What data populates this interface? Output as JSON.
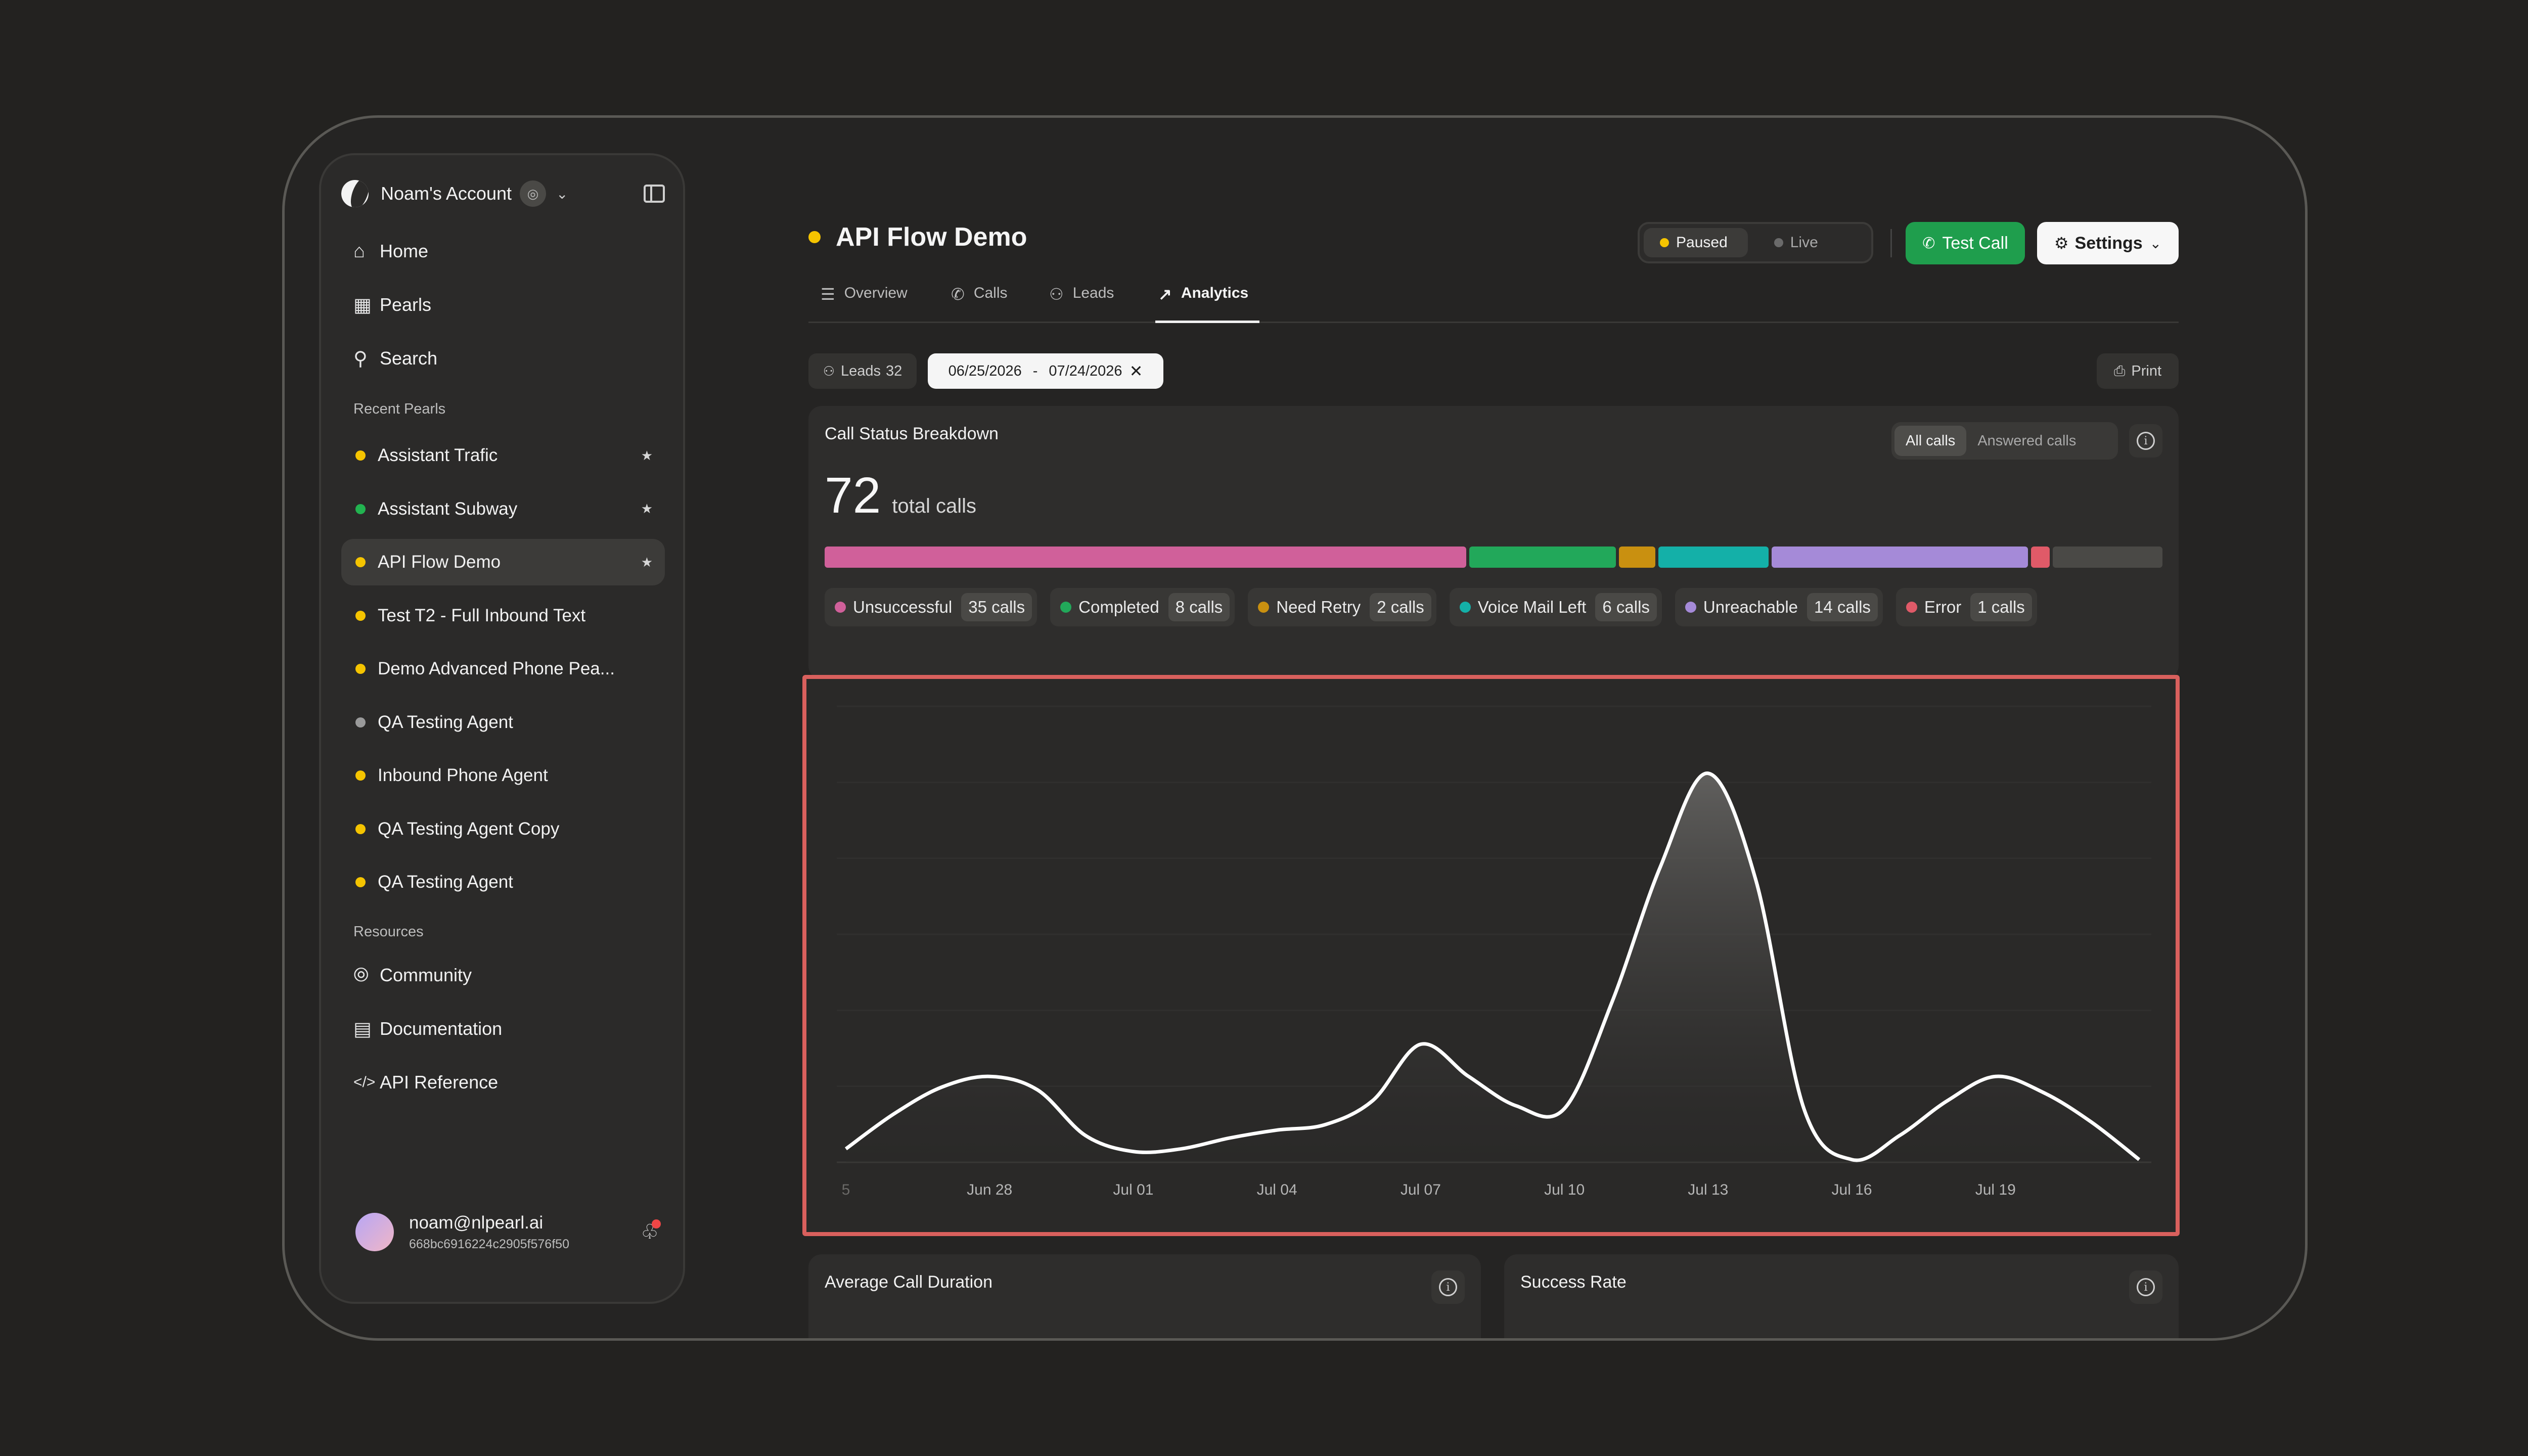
{
  "sidebar": {
    "account_name": "Noam's Account",
    "nav": [
      {
        "label": "Home",
        "icon": "home-icon"
      },
      {
        "label": "Pearls",
        "icon": "grid-icon"
      },
      {
        "label": "Search",
        "icon": "search-icon"
      }
    ],
    "recent_label": "Recent Pearls",
    "recent": [
      {
        "label": "Assistant Trafic",
        "status": "#f5c400",
        "pinned": true
      },
      {
        "label": "Assistant Subway",
        "status": "#22b350",
        "pinned": true
      },
      {
        "label": "API Flow Demo",
        "status": "#f5c400",
        "pinned": true,
        "active": true
      },
      {
        "label": "Test T2 - Full Inbound Text",
        "status": "#f5c400",
        "pinned": false
      },
      {
        "label": "Demo Advanced Phone Pea...",
        "status": "#f5c400",
        "pinned": false
      },
      {
        "label": "QA Testing Agent",
        "status": "#9a9a9a",
        "pinned": false
      },
      {
        "label": "Inbound Phone Agent",
        "status": "#f5c400",
        "pinned": false
      },
      {
        "label": "QA Testing Agent Copy",
        "status": "#f5c400",
        "pinned": false
      },
      {
        "label": "QA Testing Agent",
        "status": "#f5c400",
        "pinned": false
      }
    ],
    "resources_label": "Resources",
    "resources": [
      {
        "label": "Community",
        "icon": "compass-icon"
      },
      {
        "label": "Documentation",
        "icon": "book-icon"
      },
      {
        "label": "API Reference",
        "icon": "code-icon"
      }
    ],
    "user": {
      "email": "noam@nlpearl.ai",
      "id": "668bc6916224c2905f576f50"
    }
  },
  "header": {
    "title": "API Flow Demo",
    "status_color": "#f5c400",
    "toggle": {
      "paused": "Paused",
      "live": "Live"
    },
    "test_call": "Test Call",
    "settings": "Settings"
  },
  "tabs": [
    "Overview",
    "Calls",
    "Leads",
    "Analytics"
  ],
  "filters": {
    "leads_label": "Leads",
    "leads_count": "32",
    "date_from": "06/25/2026",
    "date_sep": "-",
    "date_to": "07/24/2026",
    "print": "Print"
  },
  "call_status": {
    "title": "Call Status Breakdown",
    "seg_all": "All calls",
    "seg_answered": "Answered calls",
    "total": "72",
    "total_label": "total calls",
    "items": [
      {
        "label": "Unsuccessful",
        "count": "35 calls",
        "value": 35,
        "color": "#d0609a"
      },
      {
        "label": "Completed",
        "count": "8 calls",
        "value": 8,
        "color": "#22a85a"
      },
      {
        "label": "Need Retry",
        "count": "2 calls",
        "value": 2,
        "color": "#c99010"
      },
      {
        "label": "Voice Mail Left",
        "count": "6 calls",
        "value": 6,
        "color": "#14b0a8"
      },
      {
        "label": "Unreachable",
        "count": "14 calls",
        "value": 14,
        "color": "#a58ad8"
      },
      {
        "label": "Error",
        "count": "1 calls",
        "value": 1,
        "color": "#e05a68"
      }
    ],
    "remainder": {
      "value": 6,
      "color": "#4a4946"
    }
  },
  "chart_data": {
    "type": "line",
    "x": [
      "Jun 25",
      "Jun 26",
      "Jun 27",
      "Jun 28",
      "Jun 29",
      "Jun 30",
      "Jul 01",
      "Jul 02",
      "Jul 03",
      "Jul 04",
      "Jul 05",
      "Jul 06",
      "Jul 07",
      "Jul 08",
      "Jul 09",
      "Jul 10",
      "Jul 11",
      "Jul 12",
      "Jul 13",
      "Jul 14",
      "Jul 15",
      "Jul 16",
      "Jul 17",
      "Jul 18",
      "Jul 19",
      "Jul 20",
      "Jul 21",
      "Jul 22"
    ],
    "tick_labels": [
      "5",
      "Jun 28",
      "Jul 01",
      "Jul 04",
      "Jul 07",
      "Jul 10",
      "Jul 13",
      "Jul 16",
      "Jul 19"
    ],
    "tick_positions": [
      "Jun 25",
      "Jun 28",
      "Jul 01",
      "Jul 04",
      "Jul 07",
      "Jul 10",
      "Jul 13",
      "Jul 16",
      "Jul 19"
    ],
    "values": [
      0.5,
      1.8,
      2.8,
      3.2,
      2.7,
      1.0,
      0.4,
      0.5,
      0.9,
      1.2,
      1.4,
      2.3,
      4.4,
      3.2,
      2.1,
      2.0,
      6.0,
      11.0,
      14.5,
      10.5,
      2.0,
      0.1,
      1.0,
      2.3,
      3.2,
      2.6,
      1.5,
      0.1
    ],
    "ylim": [
      0,
      17
    ],
    "grid": true,
    "series_color": "#ffffff"
  },
  "metrics": {
    "avg_duration": "Average Call Duration",
    "success_rate": "Success Rate"
  }
}
